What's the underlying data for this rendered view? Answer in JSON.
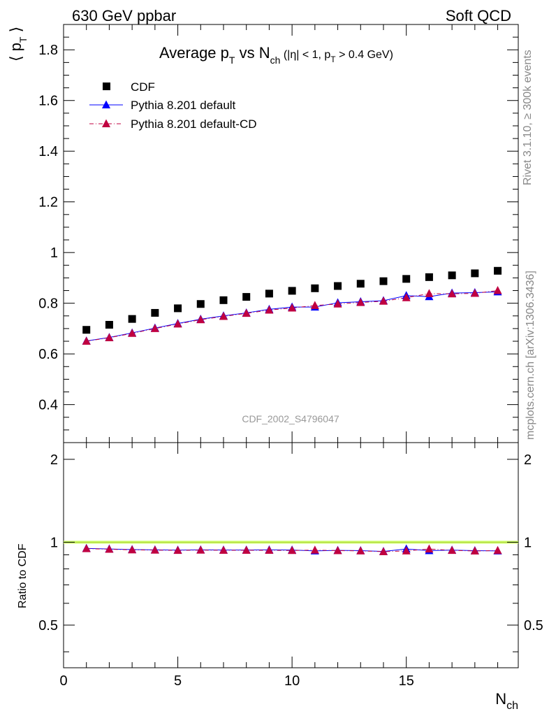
{
  "header": {
    "left": "630 GeV ppbar",
    "right": "Soft QCD"
  },
  "side_text": {
    "rivet": "Rivet 3.1.10, ≥ 300k events",
    "mcplots": "mcplots.cern.ch [arXiv:1306.3436]"
  },
  "colors": {
    "cdf": "#000000",
    "default": "#0000ff",
    "default_cd": "#c00040",
    "ratio_band": "#ccff66",
    "axis": "#000000"
  },
  "chart_data": [
    {
      "type": "scatter",
      "title": "Average p_T vs N_ch (|η| < 1, p_T > 0.4 GeV)",
      "title_parts": {
        "main": "Average p",
        "sub1": "T",
        "vs": " vs N",
        "sub2": "ch",
        "cond_open": " (|η| < 1, p",
        "cond_sub": "T",
        "cond_close": " > 0.4 GeV)"
      },
      "ylabel": "⟨ p_T ⟩",
      "ylabel_parts": {
        "open": "⟨ p",
        "sub": "T",
        "close": " ⟩"
      },
      "analysis_label": "CDF_2002_S4796047",
      "xlim": [
        0,
        19.9
      ],
      "ylim": [
        0.25,
        1.9
      ],
      "yticks": [
        0.4,
        0.6,
        0.8,
        1,
        1.2,
        1.4,
        1.6,
        1.8
      ],
      "ytick_labels": [
        "0.4",
        "0.6",
        "0.8",
        "1",
        "1.2",
        "1.4",
        "1.6",
        "1.8"
      ],
      "legend_position": "top-left",
      "series": [
        {
          "name": "CDF",
          "marker": "square",
          "x": [
            1,
            2,
            3,
            4,
            5,
            6,
            7,
            8,
            9,
            10,
            11,
            12,
            13,
            14,
            15,
            16,
            17,
            18,
            19
          ],
          "y": [
            0.695,
            0.715,
            0.738,
            0.762,
            0.78,
            0.797,
            0.812,
            0.825,
            0.838,
            0.849,
            0.859,
            0.868,
            0.877,
            0.887,
            0.896,
            0.903,
            0.91,
            0.918,
            0.928
          ]
        },
        {
          "name": "Pythia 8.201 default",
          "marker": "triangle",
          "line": "solid",
          "x": [
            1,
            2,
            3,
            4,
            5,
            6,
            7,
            8,
            9,
            10,
            11,
            12,
            13,
            14,
            15,
            16,
            17,
            18,
            19
          ],
          "y": [
            0.651,
            0.665,
            0.683,
            0.702,
            0.72,
            0.737,
            0.75,
            0.762,
            0.776,
            0.785,
            0.785,
            0.802,
            0.806,
            0.81,
            0.83,
            0.826,
            0.84,
            0.842,
            0.845
          ]
        },
        {
          "name": "Pythia 8.201 default-CD",
          "marker": "triangle",
          "line": "dashdot",
          "x": [
            1,
            2,
            3,
            4,
            5,
            6,
            7,
            8,
            9,
            10,
            11,
            12,
            13,
            14,
            15,
            16,
            17,
            18,
            19
          ],
          "y": [
            0.65,
            0.664,
            0.681,
            0.7,
            0.718,
            0.735,
            0.748,
            0.76,
            0.773,
            0.781,
            0.791,
            0.797,
            0.803,
            0.808,
            0.822,
            0.838,
            0.837,
            0.839,
            0.85
          ]
        }
      ]
    },
    {
      "type": "line",
      "ylabel": "Ratio to CDF",
      "xlabel": "N_ch",
      "xlabel_parts": {
        "main": "N",
        "sub": "ch"
      },
      "xlim": [
        0,
        19.9
      ],
      "ylim": [
        0.35,
        2.3
      ],
      "log_y": true,
      "yticks": [
        0.5,
        1,
        2
      ],
      "ytick_labels": [
        "0.5",
        "1",
        "2"
      ],
      "xticks": [
        0,
        5,
        10,
        15
      ],
      "xtick_labels": [
        "0",
        "5",
        "10",
        "15"
      ],
      "reference": 1.0,
      "series": [
        {
          "name": "Pythia 8.201 default",
          "x": [
            1,
            2,
            3,
            4,
            5,
            6,
            7,
            8,
            9,
            10,
            11,
            12,
            13,
            14,
            15,
            16,
            17,
            18,
            19
          ],
          "y": [
            0.95,
            0.945,
            0.94,
            0.938,
            0.936,
            0.938,
            0.937,
            0.937,
            0.938,
            0.937,
            0.93,
            0.934,
            0.932,
            0.926,
            0.945,
            0.932,
            0.936,
            0.932,
            0.93
          ]
        },
        {
          "name": "Pythia 8.201 default-CD",
          "x": [
            1,
            2,
            3,
            4,
            5,
            6,
            7,
            8,
            9,
            10,
            11,
            12,
            13,
            14,
            15,
            16,
            17,
            18,
            19
          ],
          "y": [
            0.948,
            0.943,
            0.938,
            0.936,
            0.934,
            0.936,
            0.935,
            0.935,
            0.935,
            0.933,
            0.936,
            0.932,
            0.93,
            0.924,
            0.93,
            0.945,
            0.934,
            0.929,
            0.933
          ]
        }
      ]
    }
  ]
}
